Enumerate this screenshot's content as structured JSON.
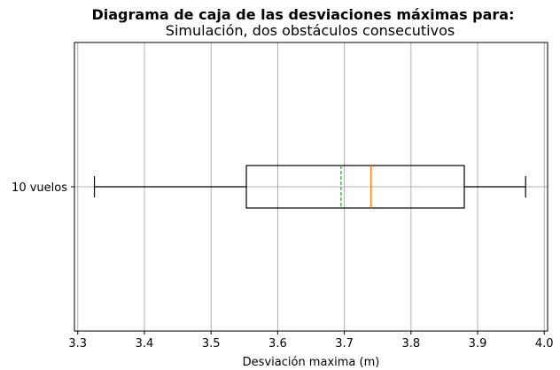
{
  "chart_data": {
    "type": "box",
    "orientation": "horizontal",
    "title": "Diagrama de caja de las desviaciones máximas para:",
    "subtitle": "Simulación, dos obstáculos consecutivos",
    "xlabel": "Desviación maxima (m)",
    "ylabel": "",
    "xlim": [
      3.295,
      4.005
    ],
    "x_ticks": [
      "3.3",
      "3.4",
      "3.5",
      "3.6",
      "3.7",
      "3.8",
      "3.9",
      "4.0"
    ],
    "grid": true,
    "series": [
      {
        "name": "10 vuelos",
        "whisker_low": 3.325,
        "q1": 3.553,
        "median": 3.74,
        "mean": 3.695,
        "q3": 3.88,
        "whisker_high": 3.972
      }
    ],
    "colors": {
      "box": "#000000",
      "median": "#ff7f0e",
      "mean": "#2ca02c",
      "grid": "#b0b0b0"
    }
  }
}
